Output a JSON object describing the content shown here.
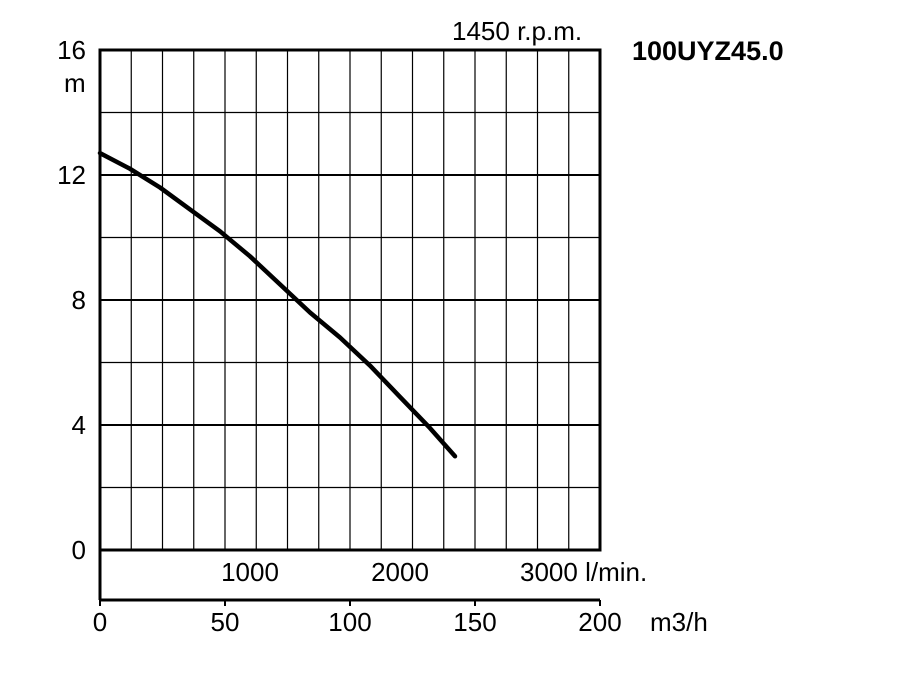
{
  "chart_data": {
    "type": "line",
    "title": "100UYZ45.0",
    "subtitle": "1450 r.p.m.",
    "ylabel": "m",
    "xlabel": "m3/h",
    "secondary_x_unit": "l/min.",
    "ylim": [
      0,
      16
    ],
    "xlim": [
      0,
      200
    ],
    "y_ticks": [
      "0",
      "4",
      "8",
      "12",
      "16"
    ],
    "x_ticks": [
      "0",
      "50",
      "100",
      "150",
      "200"
    ],
    "secondary_x_ticks": [
      "1000",
      "2000",
      "3000"
    ],
    "grid": true,
    "series": [
      {
        "x": [
          0,
          12,
          24,
          36,
          48,
          60,
          72,
          84,
          96,
          108,
          120,
          132,
          142
        ],
        "y": [
          12.7,
          12.2,
          11.6,
          10.9,
          10.2,
          9.4,
          8.5,
          7.6,
          6.8,
          5.9,
          4.9,
          3.9,
          3.0
        ]
      }
    ],
    "colors": {
      "line": "#000000",
      "grid": "#000000"
    }
  }
}
